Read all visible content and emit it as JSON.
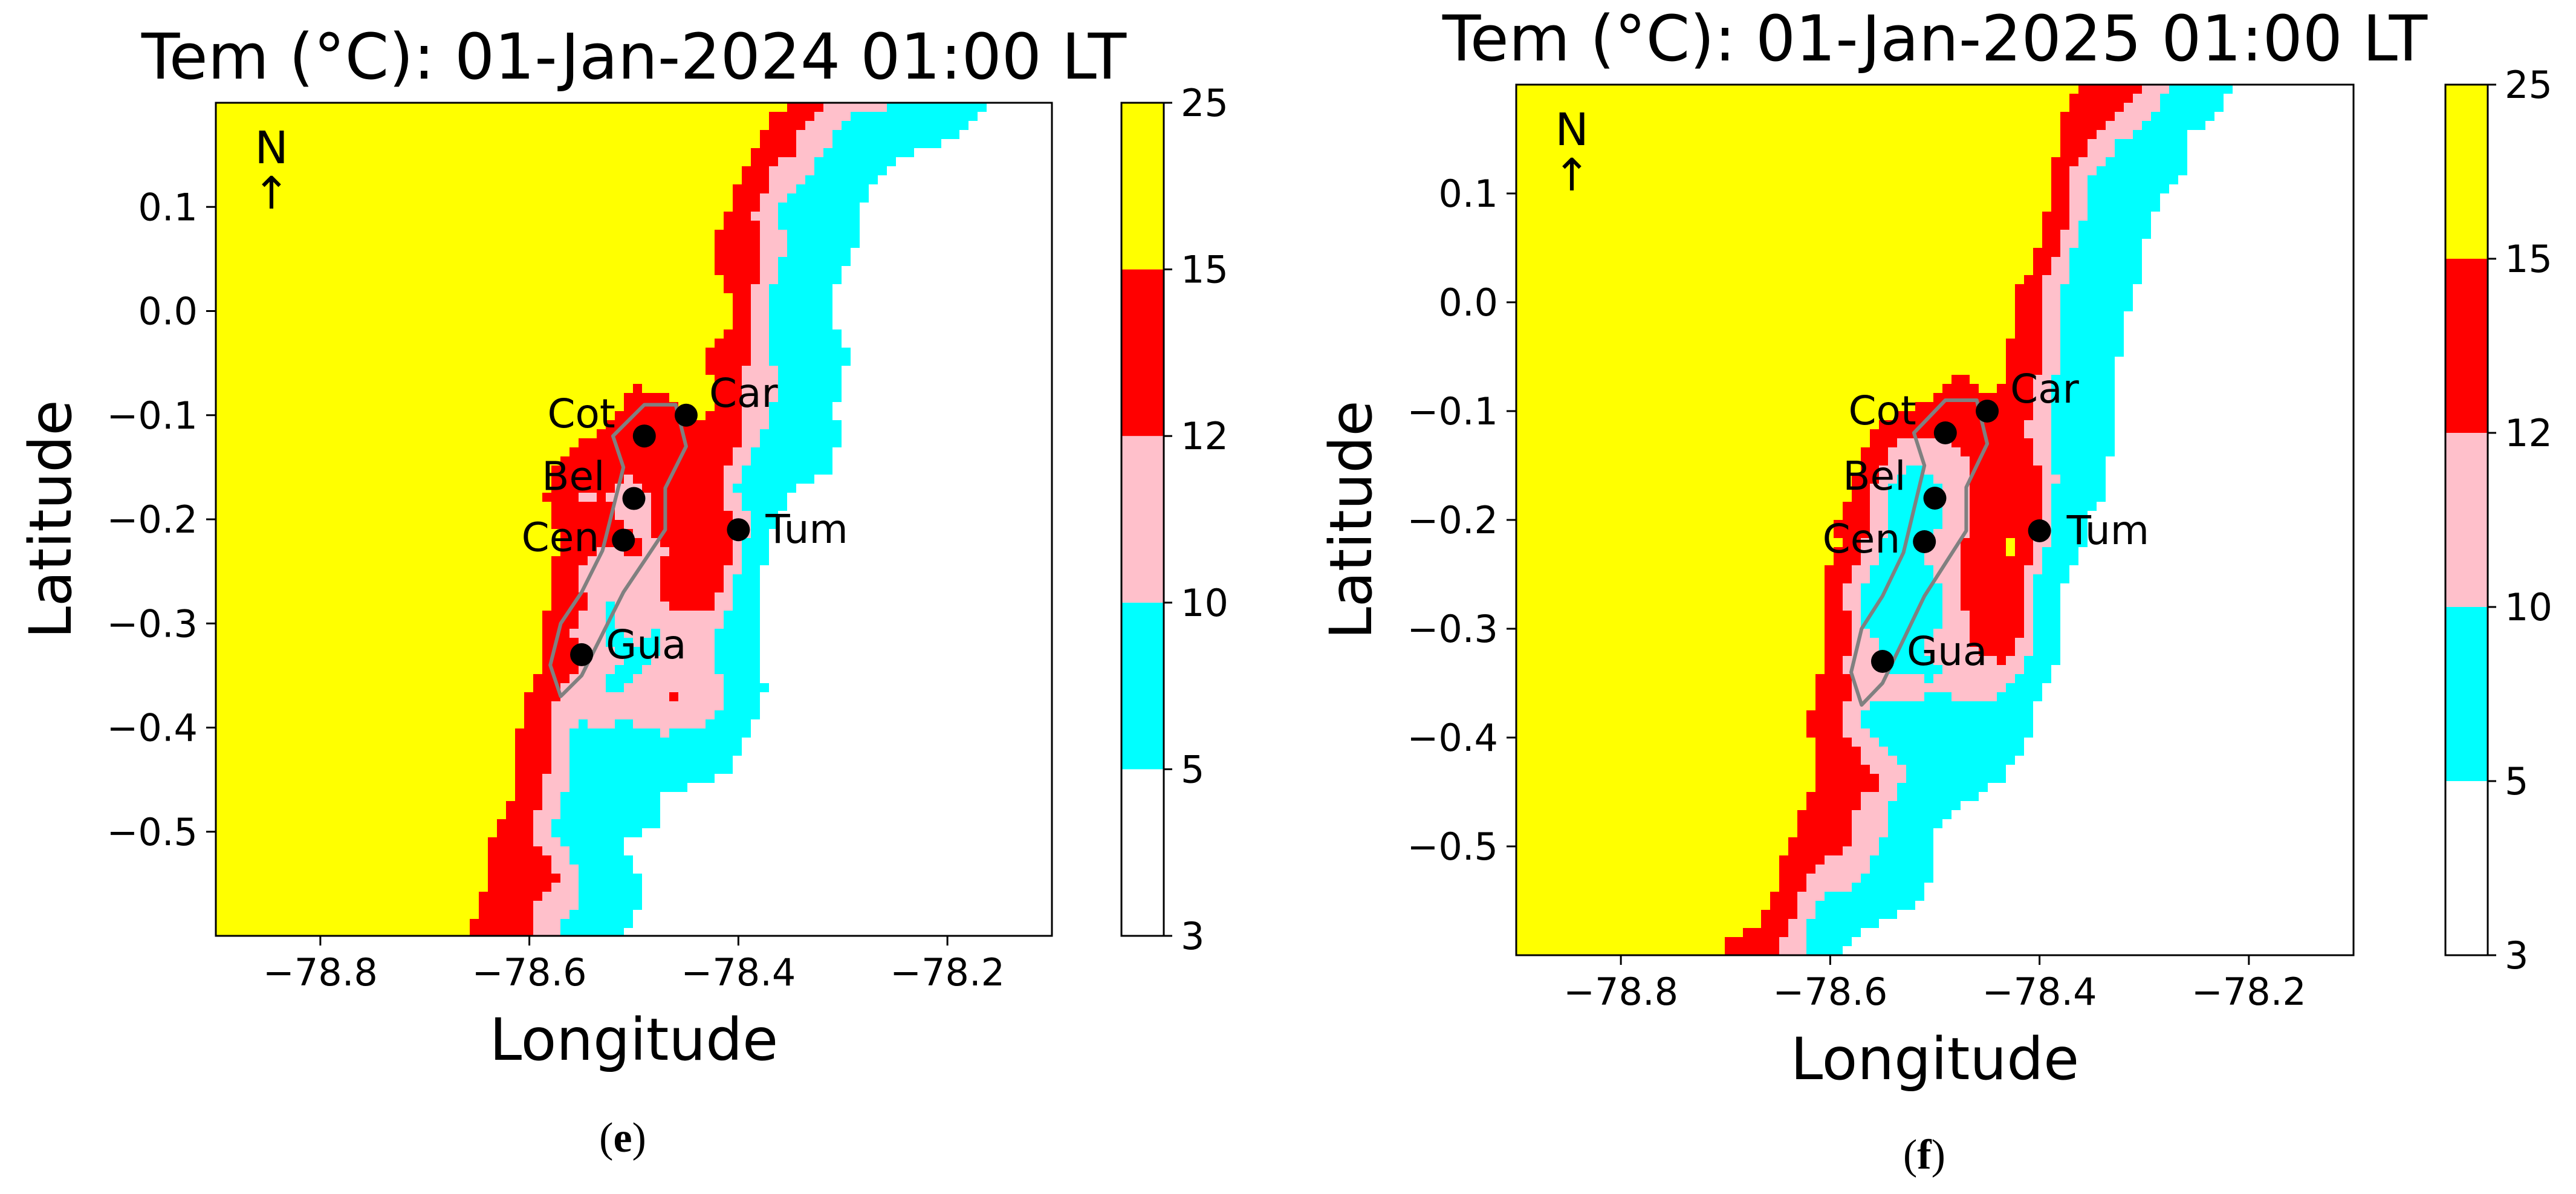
{
  "chart_data": [
    {
      "type": "heatmap",
      "title": "Tem (°C): 01-Jan-2024 01:00 LT",
      "panel_prefix": "(",
      "panel_letter": "e",
      "panel_suffix": ")",
      "xlabel": "Longitude",
      "ylabel": "Latitude",
      "xlim": [
        -78.9,
        -78.1
      ],
      "ylim": [
        -0.6,
        0.2
      ],
      "xticks": [
        -78.8,
        -78.6,
        -78.4,
        -78.2
      ],
      "xtick_labels": [
        "−78.8",
        "−78.6",
        "−78.4",
        "−78.2"
      ],
      "yticks": [
        0.1,
        0.0,
        -0.1,
        -0.2,
        -0.3,
        -0.4,
        -0.5
      ],
      "ytick_labels": [
        "0.1",
        "0.0",
        "−0.1",
        "−0.2",
        "−0.3",
        "−0.4",
        "−0.5"
      ],
      "colorbar": {
        "levels": [
          3,
          5,
          10,
          12,
          15,
          25
        ],
        "labels": [
          "3",
          "5",
          "10",
          "12",
          "15",
          "25"
        ],
        "colors": [
          "#ffffff",
          "#00ffff",
          "#ffc0cb",
          "#ff0000",
          "#ffff00"
        ]
      },
      "north_label": "N",
      "north_arrow": "↑",
      "stations": [
        {
          "name": "Cot",
          "lon": -78.49,
          "lat": -0.12
        },
        {
          "name": "Car",
          "lon": -78.45,
          "lat": -0.1
        },
        {
          "name": "Bel",
          "lon": -78.5,
          "lat": -0.18
        },
        {
          "name": "Cen",
          "lon": -78.51,
          "lat": -0.22
        },
        {
          "name": "Tum",
          "lon": -78.4,
          "lat": -0.21
        },
        {
          "name": "Gua",
          "lon": -78.55,
          "lat": -0.33
        }
      ]
    },
    {
      "type": "heatmap",
      "title": "Tem (°C): 01-Jan-2025 01:00 LT",
      "panel_prefix": "(",
      "panel_letter": "f",
      "panel_suffix": ")",
      "xlabel": "Longitude",
      "ylabel": "Latitude",
      "xlim": [
        -78.9,
        -78.1
      ],
      "ylim": [
        -0.6,
        0.2
      ],
      "xticks": [
        -78.8,
        -78.6,
        -78.4,
        -78.2
      ],
      "xtick_labels": [
        "−78.8",
        "−78.6",
        "−78.4",
        "−78.2"
      ],
      "yticks": [
        0.1,
        0.0,
        -0.1,
        -0.2,
        -0.3,
        -0.4,
        -0.5
      ],
      "ytick_labels": [
        "0.1",
        "0.0",
        "−0.1",
        "−0.2",
        "−0.3",
        "−0.4",
        "−0.5"
      ],
      "colorbar": {
        "levels": [
          3,
          5,
          10,
          12,
          15,
          25
        ],
        "labels": [
          "3",
          "5",
          "10",
          "12",
          "15",
          "25"
        ],
        "colors": [
          "#ffffff",
          "#00ffff",
          "#ffc0cb",
          "#ff0000",
          "#ffff00"
        ]
      },
      "north_label": "N",
      "north_arrow": "↑",
      "stations": [
        {
          "name": "Cot",
          "lon": -78.49,
          "lat": -0.12
        },
        {
          "name": "Car",
          "lon": -78.45,
          "lat": -0.1
        },
        {
          "name": "Bel",
          "lon": -78.5,
          "lat": -0.18
        },
        {
          "name": "Cen",
          "lon": -78.51,
          "lat": -0.22
        },
        {
          "name": "Tum",
          "lon": -78.4,
          "lat": -0.21
        },
        {
          "name": "Gua",
          "lon": -78.55,
          "lat": -0.33
        }
      ]
    }
  ]
}
